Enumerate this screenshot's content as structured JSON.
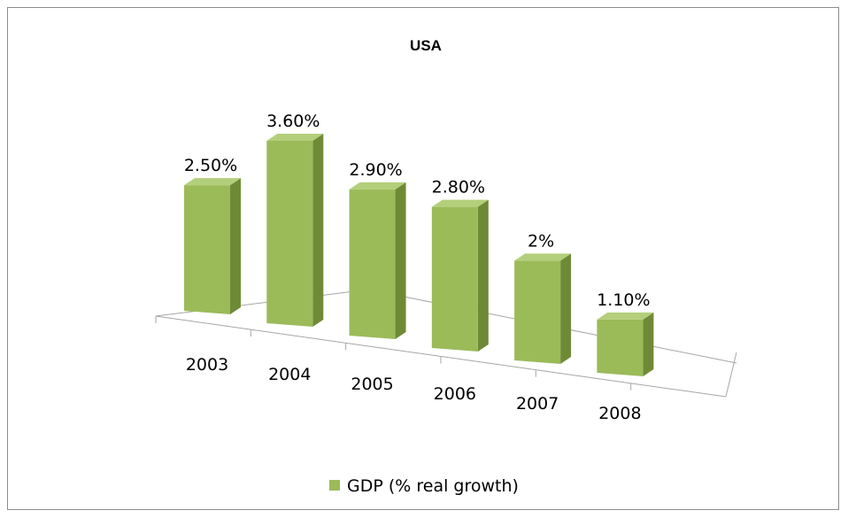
{
  "chart_data": {
    "type": "bar",
    "style": "3d-column",
    "title": "USA",
    "categories": [
      "2003",
      "2004",
      "2005",
      "2006",
      "2007",
      "2008"
    ],
    "series": [
      {
        "name": "GDP (% real growth)",
        "values": [
          2.5,
          3.6,
          2.9,
          2.8,
          2.0,
          1.1
        ],
        "data_labels": [
          "2.50%",
          "3.60%",
          "2.90%",
          "2.80%",
          "2%",
          "1.10%"
        ]
      }
    ],
    "ylim": [
      0,
      3.6
    ],
    "legend_position": "bottom",
    "grid": false,
    "colors": {
      "bar_front": "#9bbb59",
      "bar_side": "#6f8a37",
      "bar_top": "#b4cf7b",
      "floor_line": "#a6a6a6",
      "frame": "#8c8c8c"
    }
  }
}
